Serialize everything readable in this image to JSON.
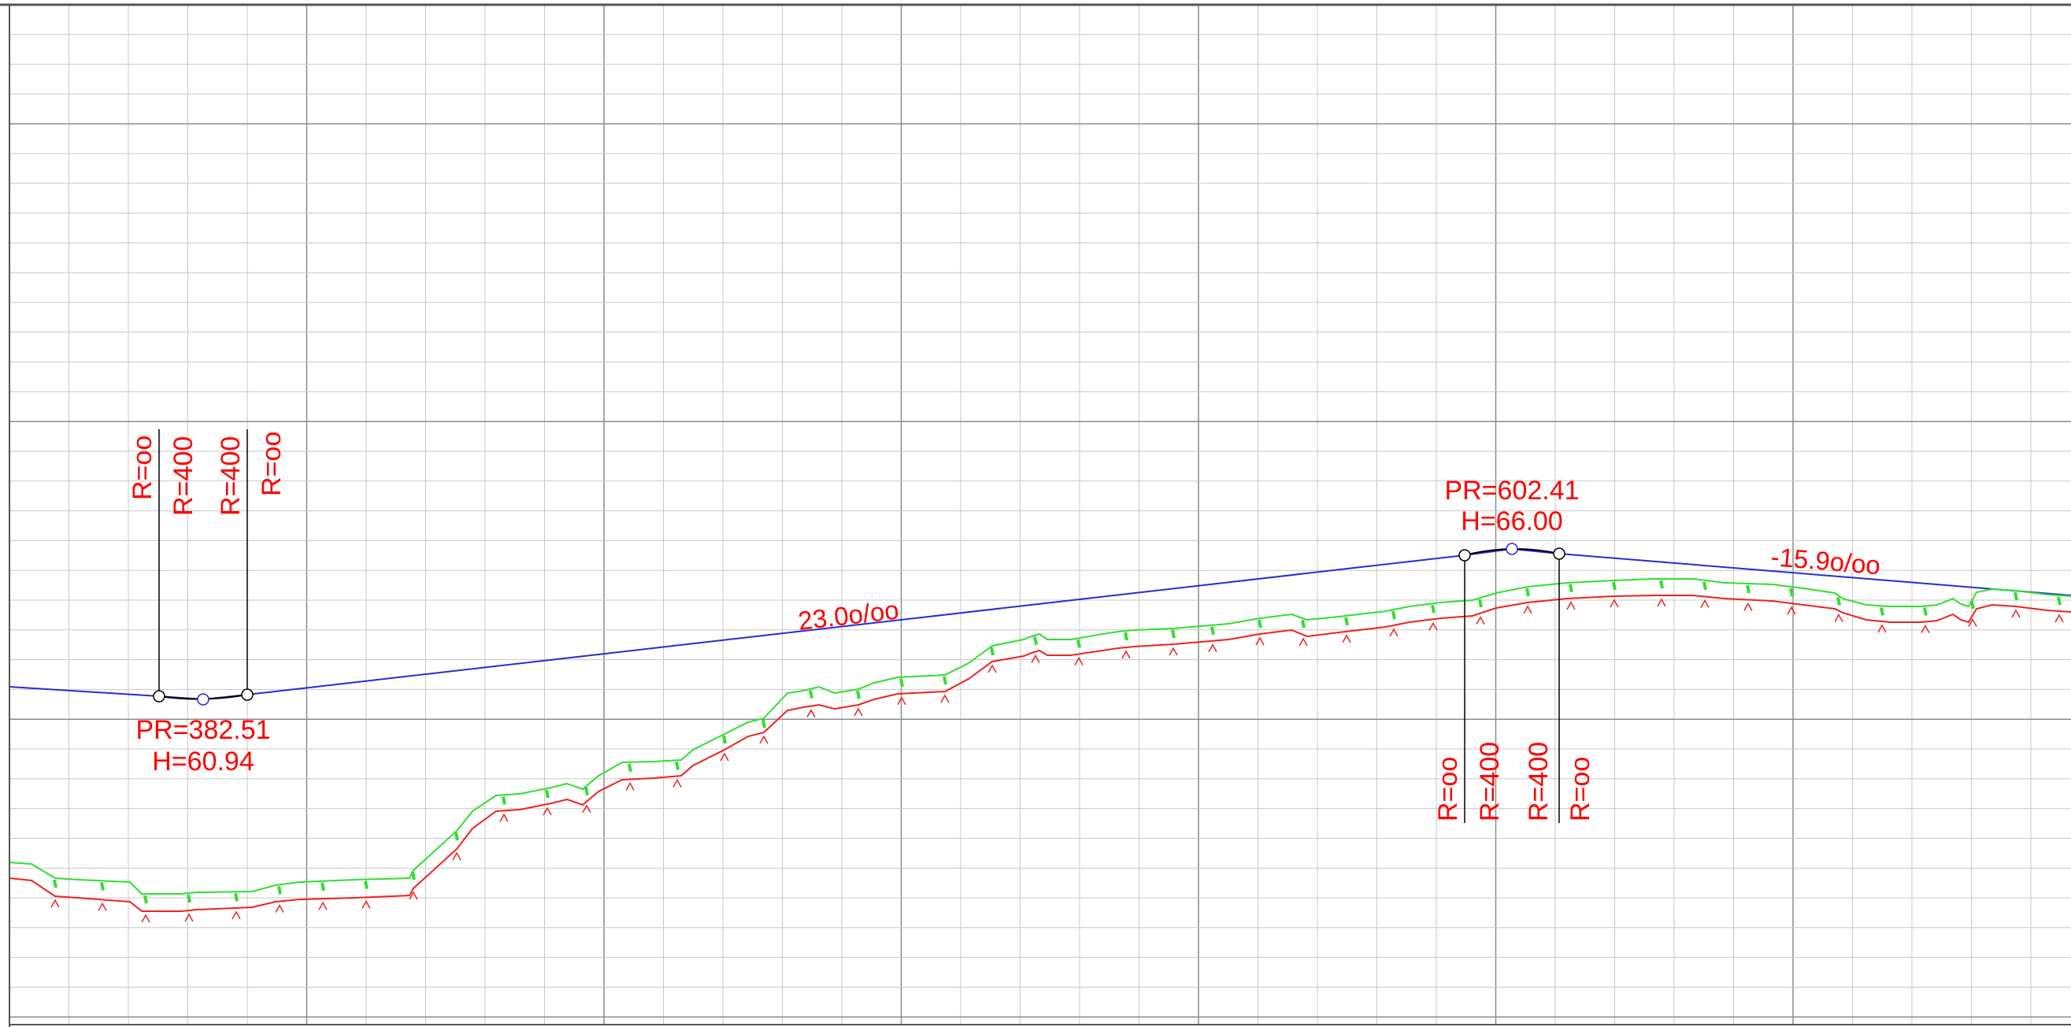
{
  "drawing": {
    "colors": {
      "background": "#ffffff",
      "grid_minor": "#c8c8c8",
      "grid_major": "#8c8c8c",
      "design_line": "#2a2ad8",
      "vertical_curve": "#000000",
      "terrain_upper": "#33dd33",
      "terrain_lower": "#ee2222",
      "annotation_text": "#ff0000",
      "leader_line": "#000000"
    },
    "sag_curve": {
      "tangent_radius_1": "R=oo",
      "radius_1": "R=400",
      "radius_2": "R=400",
      "tangent_radius_2": "R=oo",
      "pr_label": "PR=382.51",
      "h_label": "H=60.94"
    },
    "crest_curve": {
      "pr_label": "PR=602.41",
      "h_label": "H=66.00",
      "tangent_radius_1": "R=oo",
      "radius_1": "R=400",
      "radius_2": "R=400",
      "tangent_radius_2": "R=oo"
    },
    "grades": {
      "rising": "23.0o/oo",
      "falling": "-15.9o/oo"
    }
  }
}
